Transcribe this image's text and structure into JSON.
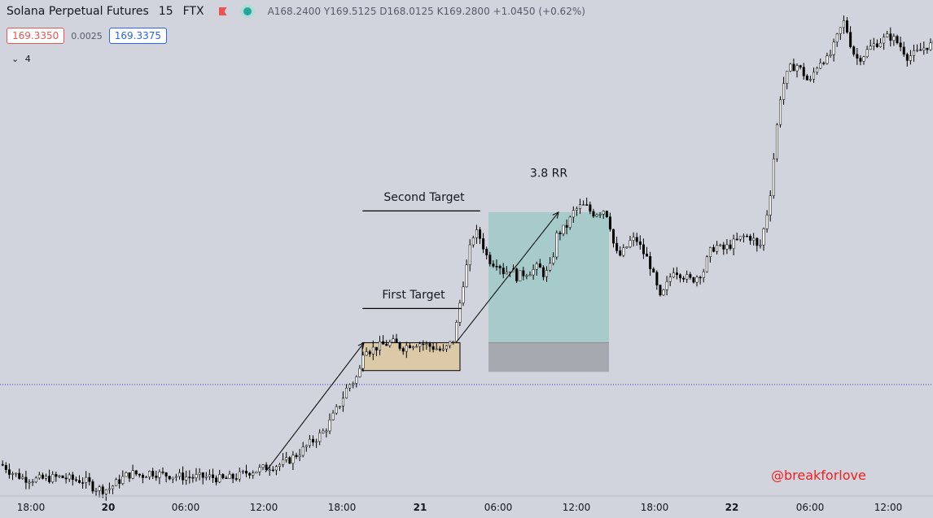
{
  "header": {
    "symbol": "Solana Perpetual Futures",
    "interval": "15",
    "exchange": "FTX",
    "ohlc": "A168.2400 Y169.5125 D168.0125 K169.2800 +1.0450 (+0.62%)"
  },
  "prices": {
    "sell": "169.3350",
    "spread": "0.0025",
    "buy": "169.3375"
  },
  "indicators": {
    "toggle": "4"
  },
  "watermark": "@breakforlove",
  "colors": {
    "background": "#d1d4dc",
    "candle_up": "#ffffff",
    "candle_down": "#000000",
    "target_zone": "#a7cbcb",
    "stop_zone": "#a7a9b0",
    "consolidation_box": "#dcc9a8",
    "price_line": "#3a3ad0"
  },
  "chart_data": {
    "type": "candlestick",
    "title": "",
    "xlabel": "",
    "ylabel": "",
    "ylim": [
      149.5,
      188.0
    ],
    "x_ticks": [
      "18:00",
      "20",
      "06:00",
      "12:00",
      "18:00",
      "21",
      "06:00",
      "12:00",
      "18:00",
      "22",
      "06:00",
      "12:00"
    ],
    "current_price": 158.3,
    "close_path": [
      [
        0,
        152.0
      ],
      [
        6,
        151.9
      ],
      [
        12,
        151.5
      ],
      [
        20,
        151.2
      ],
      [
        30,
        150.9
      ],
      [
        45,
        150.8
      ],
      [
        60,
        150.9
      ],
      [
        75,
        151.0
      ],
      [
        90,
        150.8
      ],
      [
        105,
        150.7
      ],
      [
        110,
        150.5
      ],
      [
        115,
        150.2
      ],
      [
        120,
        150.1
      ],
      [
        128,
        150.0
      ],
      [
        135,
        150.1
      ],
      [
        145,
        150.6
      ],
      [
        155,
        151.1
      ],
      [
        165,
        151.3
      ],
      [
        175,
        151.1
      ],
      [
        185,
        151.4
      ],
      [
        200,
        151.2
      ],
      [
        215,
        151.1
      ],
      [
        230,
        151.0
      ],
      [
        245,
        151.0
      ],
      [
        260,
        151.0
      ],
      [
        275,
        150.8
      ],
      [
        290,
        151.0
      ],
      [
        305,
        151.4
      ],
      [
        320,
        151.6
      ],
      [
        330,
        151.8
      ],
      [
        345,
        152.0
      ],
      [
        355,
        152.3
      ],
      [
        370,
        153.0
      ],
      [
        380,
        153.6
      ],
      [
        390,
        154.1
      ],
      [
        400,
        154.7
      ],
      [
        410,
        155.8
      ],
      [
        420,
        157.0
      ],
      [
        428,
        158.2
      ],
      [
        436,
        158.6
      ],
      [
        442,
        159.2
      ],
      [
        448,
        161.4
      ],
      [
        455,
        161.0
      ],
      [
        465,
        161.3
      ],
      [
        475,
        161.5
      ],
      [
        485,
        161.6
      ],
      [
        495,
        161.2
      ],
      [
        505,
        161.5
      ],
      [
        515,
        161.6
      ],
      [
        525,
        161.4
      ],
      [
        535,
        161.2
      ],
      [
        545,
        160.9
      ],
      [
        552,
        161.4
      ],
      [
        558,
        161.9
      ],
      [
        563,
        163.5
      ],
      [
        568,
        165.8
      ],
      [
        573,
        167.3
      ],
      [
        578,
        169.0
      ],
      [
        583,
        170.3
      ],
      [
        588,
        170.2
      ],
      [
        593,
        169.5
      ],
      [
        598,
        168.5
      ],
      [
        605,
        167.9
      ],
      [
        612,
        168.0
      ],
      [
        620,
        167.1
      ],
      [
        628,
        167.5
      ],
      [
        635,
        166.8
      ],
      [
        645,
        167.1
      ],
      [
        655,
        167.3
      ],
      [
        662,
        167.6
      ],
      [
        670,
        166.9
      ],
      [
        678,
        167.7
      ],
      [
        685,
        170.2
      ],
      [
        692,
        170.5
      ],
      [
        698,
        170.9
      ],
      [
        705,
        171.9
      ],
      [
        712,
        172.3
      ],
      [
        720,
        172.4
      ],
      [
        728,
        171.8
      ],
      [
        735,
        171.9
      ],
      [
        742,
        172.1
      ],
      [
        748,
        171.6
      ],
      [
        754,
        169.5
      ],
      [
        760,
        168.3
      ],
      [
        768,
        168.9
      ],
      [
        775,
        169.6
      ],
      [
        782,
        169.8
      ],
      [
        790,
        168.8
      ],
      [
        798,
        168.0
      ],
      [
        805,
        166.5
      ],
      [
        812,
        165.0
      ],
      [
        820,
        166.2
      ],
      [
        828,
        167.4
      ],
      [
        835,
        167.1
      ],
      [
        842,
        166.8
      ],
      [
        850,
        166.5
      ],
      [
        858,
        166.9
      ],
      [
        865,
        167.3
      ],
      [
        872,
        168.7
      ],
      [
        880,
        169.3
      ],
      [
        888,
        168.9
      ],
      [
        895,
        169.2
      ],
      [
        905,
        169.6
      ],
      [
        915,
        170.0
      ],
      [
        925,
        169.9
      ],
      [
        933,
        168.8
      ],
      [
        940,
        170.9
      ],
      [
        946,
        172.8
      ],
      [
        950,
        175.5
      ],
      [
        955,
        178.6
      ],
      [
        960,
        181.4
      ],
      [
        965,
        182.4
      ],
      [
        972,
        183.3
      ],
      [
        980,
        183.5
      ],
      [
        988,
        182.8
      ],
      [
        995,
        182.0
      ],
      [
        1002,
        183.2
      ],
      [
        1010,
        184.0
      ],
      [
        1018,
        183.9
      ],
      [
        1025,
        185.0
      ],
      [
        1032,
        186.2
      ],
      [
        1038,
        187.0
      ],
      [
        1045,
        185.3
      ],
      [
        1052,
        184.0
      ],
      [
        1060,
        184.2
      ],
      [
        1068,
        184.8
      ],
      [
        1076,
        185.2
      ],
      [
        1085,
        185.5
      ],
      [
        1093,
        185.8
      ],
      [
        1100,
        185.5
      ],
      [
        1108,
        184.9
      ],
      [
        1115,
        184.2
      ],
      [
        1122,
        184.3
      ],
      [
        1130,
        184.6
      ],
      [
        1138,
        185.0
      ],
      [
        1146,
        185.1
      ]
    ],
    "annotations": [
      {
        "kind": "label",
        "text": "Second Target"
      },
      {
        "kind": "label",
        "text": "First Target"
      },
      {
        "kind": "label",
        "text": "3.8 RR"
      }
    ]
  }
}
